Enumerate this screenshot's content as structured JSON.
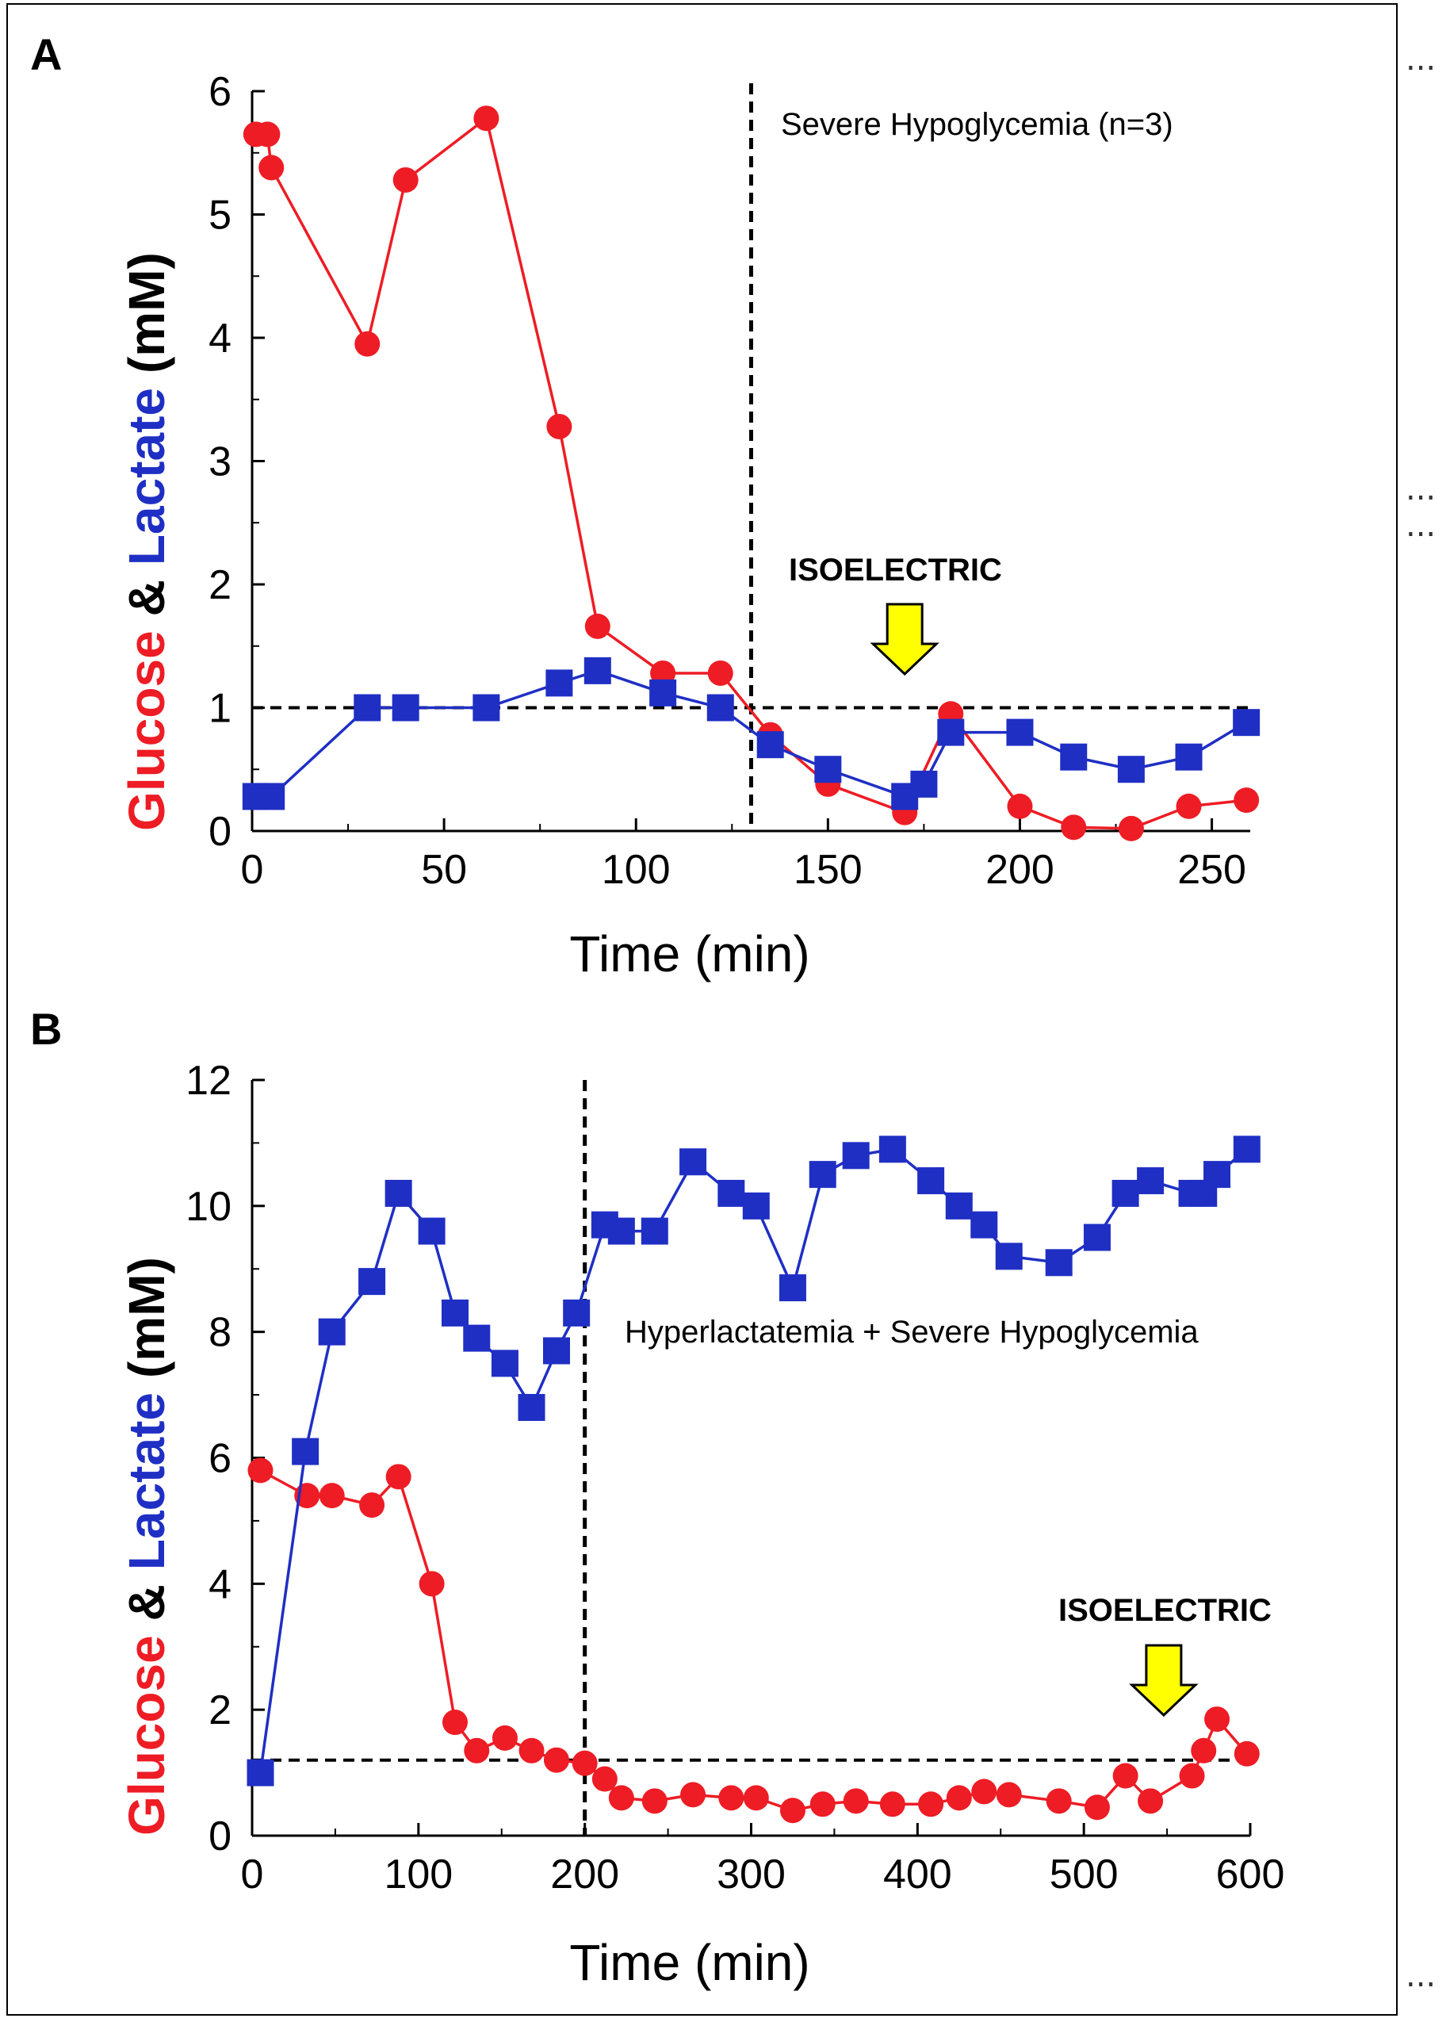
{
  "colors": {
    "glucose": "#ee1c24",
    "lactate": "#1f2fc4",
    "axis": "#000000",
    "arrow_fill": "#ffff00"
  },
  "side_marks": [
    "...",
    "...",
    "...",
    "..."
  ],
  "chart_data": [
    {
      "panel": "A",
      "type": "line",
      "xlabel": "Time (min)",
      "ylabel": {
        "part1": "Glucose",
        "part2": "&",
        "part3": "Lactate",
        "part4": "(mM)"
      },
      "xlim": [
        0,
        260
      ],
      "ylim": [
        0,
        6
      ],
      "xticks": [
        0,
        50,
        100,
        150,
        200,
        250
      ],
      "yticks": [
        0,
        1,
        2,
        3,
        4,
        5,
        6
      ],
      "annotation": "Severe Hypoglycemia (n=3)",
      "isoelectric_label": "ISOELECTRIC",
      "isoelectric_time": 170,
      "vline_x": 130,
      "hline_y": 1,
      "series": [
        {
          "name": "Glucose",
          "marker": "circle",
          "x": [
            1,
            4,
            5,
            30,
            40,
            61,
            80,
            90,
            107,
            122,
            135,
            150,
            170,
            182,
            200,
            214,
            229,
            244,
            259
          ],
          "y": [
            5.65,
            5.65,
            5.38,
            3.95,
            5.28,
            5.78,
            3.28,
            1.66,
            1.28,
            1.28,
            0.78,
            0.38,
            0.15,
            0.95,
            0.2,
            0.03,
            0.02,
            0.2,
            0.25
          ]
        },
        {
          "name": "Lactate",
          "marker": "square",
          "x": [
            1,
            5,
            30,
            40,
            61,
            80,
            90,
            107,
            122,
            135,
            150,
            170,
            175,
            182,
            200,
            214,
            229,
            244,
            259
          ],
          "y": [
            0.28,
            0.28,
            1.0,
            1.0,
            1.0,
            1.2,
            1.3,
            1.12,
            1.0,
            0.7,
            0.5,
            0.28,
            0.38,
            0.8,
            0.8,
            0.6,
            0.5,
            0.6,
            0.88
          ]
        }
      ]
    },
    {
      "panel": "B",
      "type": "line",
      "xlabel": "Time (min)",
      "ylabel": {
        "part1": "Glucose",
        "part2": "&",
        "part3": "Lactate",
        "part4": "(mM)"
      },
      "xlim": [
        0,
        600
      ],
      "ylim": [
        0,
        12
      ],
      "xticks": [
        0,
        100,
        200,
        300,
        400,
        500,
        600
      ],
      "yticks": [
        0,
        2,
        4,
        6,
        8,
        10,
        12
      ],
      "annotation": "Hyperlactatemia + Severe Hypoglycemia",
      "isoelectric_label": "ISOELECTRIC",
      "isoelectric_time": 548,
      "vline_x": 200,
      "hline_y": 1.2,
      "series": [
        {
          "name": "Glucose",
          "marker": "circle",
          "x": [
            5,
            33,
            48,
            72,
            88,
            108,
            122,
            135,
            152,
            168,
            183,
            200,
            212,
            222,
            242,
            265,
            288,
            303,
            325,
            343,
            363,
            385,
            408,
            425,
            440,
            455,
            485,
            508,
            525,
            540,
            565,
            572,
            580,
            598
          ],
          "y": [
            5.8,
            5.4,
            5.4,
            5.25,
            5.7,
            4.0,
            1.8,
            1.35,
            1.55,
            1.35,
            1.2,
            1.15,
            0.9,
            0.6,
            0.55,
            0.65,
            0.6,
            0.6,
            0.4,
            0.5,
            0.55,
            0.5,
            0.5,
            0.6,
            0.7,
            0.65,
            0.55,
            0.45,
            0.95,
            0.55,
            0.95,
            1.35,
            1.85,
            1.3
          ]
        },
        {
          "name": "Lactate",
          "marker": "square",
          "x": [
            5,
            32,
            48,
            72,
            88,
            108,
            122,
            135,
            152,
            168,
            183,
            195,
            212,
            222,
            242,
            265,
            288,
            303,
            325,
            343,
            363,
            385,
            408,
            425,
            440,
            455,
            485,
            508,
            525,
            540,
            565,
            572,
            580,
            598
          ],
          "y": [
            1.0,
            6.1,
            8.0,
            8.8,
            10.2,
            9.6,
            8.3,
            7.9,
            7.5,
            6.8,
            7.7,
            8.3,
            9.7,
            9.6,
            9.6,
            10.7,
            10.2,
            10.0,
            8.7,
            10.5,
            10.8,
            10.9,
            10.4,
            10.0,
            9.7,
            9.2,
            9.1,
            9.5,
            10.2,
            10.4,
            10.2,
            10.2,
            10.5,
            10.9
          ]
        }
      ]
    }
  ]
}
